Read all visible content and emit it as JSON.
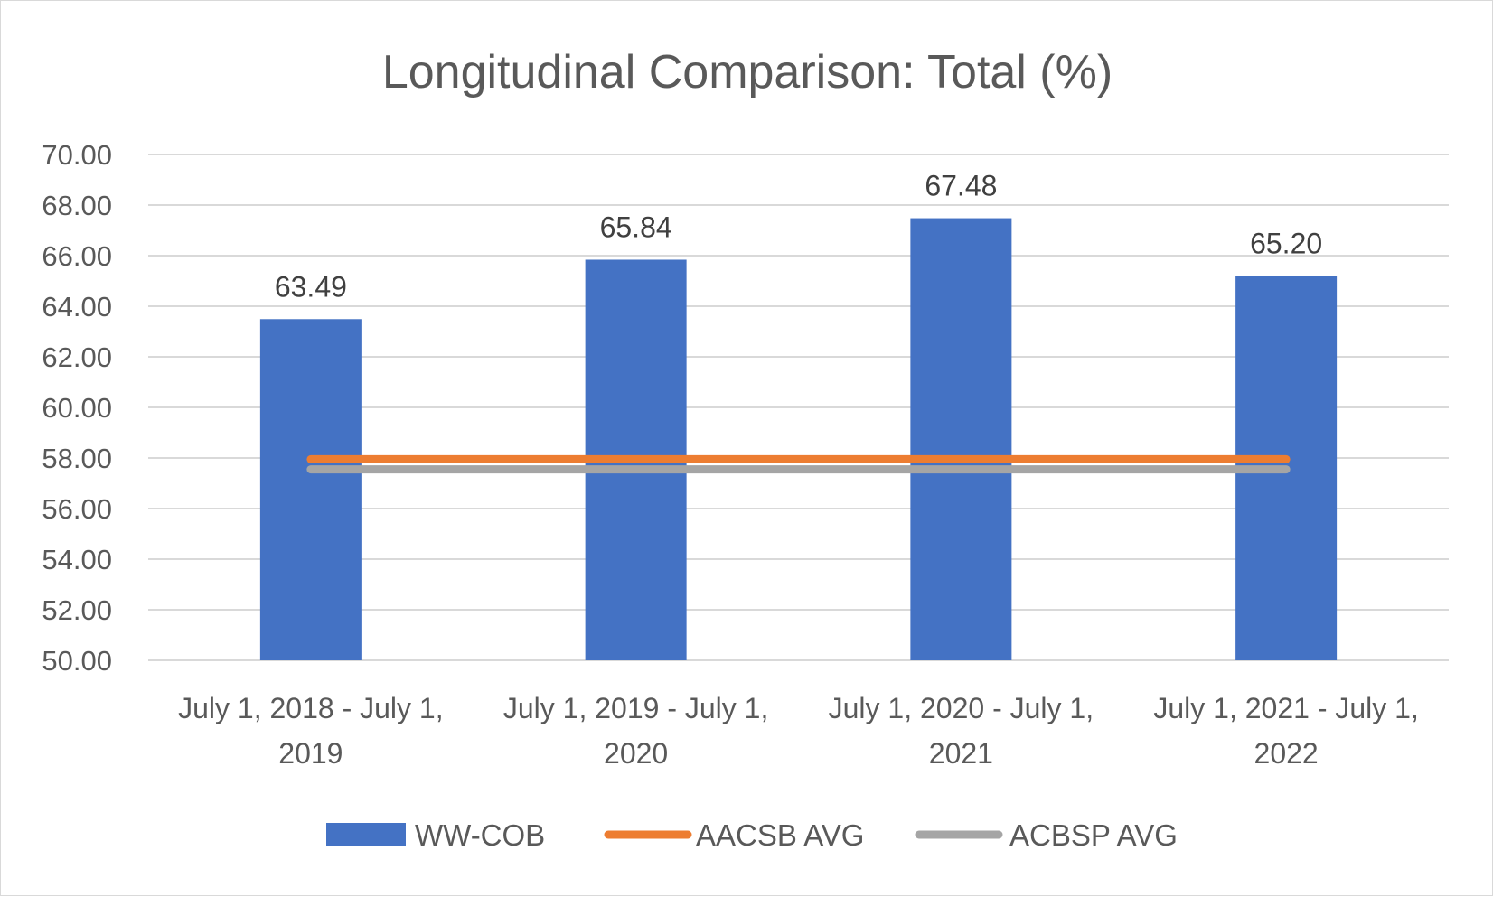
{
  "chart_data": {
    "type": "bar",
    "title": "Longitudinal Comparison: Total (%)",
    "categories": [
      [
        "July 1, 2018 - July 1,",
        "2019"
      ],
      [
        "July 1, 2019 - July 1,",
        "2020"
      ],
      [
        "July 1, 2020 - July 1,",
        "2021"
      ],
      [
        "July 1, 2021 - July 1,",
        "2022"
      ]
    ],
    "series": [
      {
        "name": "WW-COB",
        "type": "bar",
        "color": "#4472c4",
        "values": [
          63.49,
          65.84,
          67.48,
          65.2
        ],
        "labels": [
          "63.49",
          "65.84",
          "67.48",
          "65.20"
        ]
      },
      {
        "name": "AACSB AVG",
        "type": "line",
        "color": "#ed7d31",
        "values": [
          57.95,
          57.95,
          57.95,
          57.95
        ]
      },
      {
        "name": "ACBSP AVG",
        "type": "line",
        "color": "#a5a5a5",
        "values": [
          57.55,
          57.55,
          57.55,
          57.55
        ]
      }
    ],
    "ylim": [
      50,
      70
    ],
    "yticks": [
      "50.00",
      "52.00",
      "54.00",
      "56.00",
      "58.00",
      "60.00",
      "62.00",
      "64.00",
      "66.00",
      "68.00",
      "70.00"
    ],
    "grid": true,
    "legend": "bottom"
  }
}
